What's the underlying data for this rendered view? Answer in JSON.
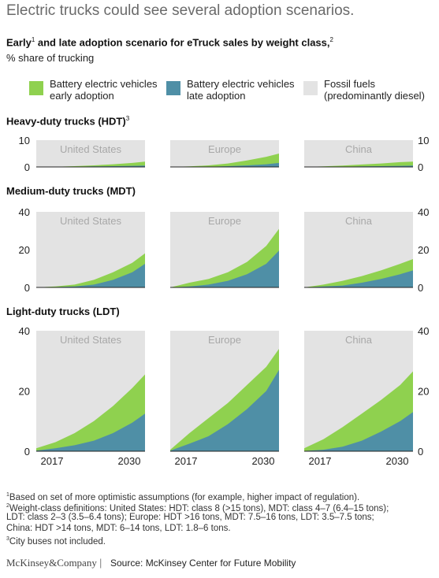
{
  "header": {
    "title": "Electric trucks could see several adoption scenarios.",
    "subtitle": "Early",
    "subtitle_sup1": "1",
    "subtitle_rest": " and late adoption scenario for eTruck sales by weight class,",
    "subtitle_sup2": "2",
    "unit": "% share of trucking"
  },
  "legend": [
    {
      "line1": "Battery electric vehicles",
      "line2": "early adoption",
      "color": "#8fd14f"
    },
    {
      "line1": "Battery electric vehicles",
      "line2": "late adoption",
      "color": "#4f8fa6"
    },
    {
      "line1": "Fossil fuels",
      "line2": "(predominantly diesel)",
      "color": "#e3e3e3"
    }
  ],
  "colors": {
    "early": "#8fd14f",
    "late": "#4f8fa6",
    "fossil": "#e3e3e3",
    "region_label": "#a8a8a8"
  },
  "sections": [
    {
      "title": "Heavy-duty trucks (HDT)",
      "sup": "3"
    },
    {
      "title": "Medium-duty trucks (MDT)",
      "sup": ""
    },
    {
      "title": "Light-duty trucks (LDT)",
      "sup": ""
    }
  ],
  "chart_data": [
    {
      "type": "area",
      "group": "Heavy-duty trucks (HDT)",
      "region": "United States",
      "ylim": [
        0,
        10
      ],
      "yticks": [
        0,
        10
      ],
      "x": [
        2015,
        2018,
        2021,
        2024,
        2027,
        2030,
        2032
      ],
      "series": [
        {
          "name": "Battery electric vehicles early adoption",
          "values": [
            0,
            0.1,
            0.3,
            0.6,
            1.0,
            1.5,
            2.0
          ]
        },
        {
          "name": "Battery electric vehicles late adoption",
          "values": [
            0,
            0,
            0.1,
            0.2,
            0.3,
            0.4,
            0.5
          ]
        }
      ]
    },
    {
      "type": "area",
      "group": "Heavy-duty trucks (HDT)",
      "region": "Europe",
      "ylim": [
        0,
        10
      ],
      "yticks": [
        0,
        10
      ],
      "x": [
        2015,
        2018,
        2021,
        2024,
        2027,
        2030,
        2032
      ],
      "series": [
        {
          "name": "Battery electric vehicles early adoption",
          "values": [
            0,
            0.2,
            0.6,
            1.3,
            2.4,
            3.8,
            5.0
          ]
        },
        {
          "name": "Battery electric vehicles late adoption",
          "values": [
            0,
            0,
            0.1,
            0.3,
            0.6,
            1.0,
            1.5
          ]
        }
      ]
    },
    {
      "type": "area",
      "group": "Heavy-duty trucks (HDT)",
      "region": "China",
      "ylim": [
        0,
        10
      ],
      "yticks": [
        0,
        10
      ],
      "x": [
        2015,
        2018,
        2021,
        2024,
        2027,
        2030,
        2032
      ],
      "series": [
        {
          "name": "Battery electric vehicles early adoption",
          "values": [
            0,
            0.2,
            0.5,
            0.9,
            1.3,
            1.8,
            2.0
          ]
        },
        {
          "name": "Battery electric vehicles late adoption",
          "values": [
            0,
            0,
            0.1,
            0.2,
            0.3,
            0.4,
            0.5
          ]
        }
      ]
    },
    {
      "type": "area",
      "group": "Medium-duty trucks (MDT)",
      "region": "United States",
      "ylim": [
        0,
        40
      ],
      "yticks": [
        0,
        20,
        40
      ],
      "x": [
        2015,
        2018,
        2021,
        2024,
        2027,
        2030,
        2032
      ],
      "series": [
        {
          "name": "Battery electric vehicles early adoption",
          "values": [
            0,
            0.5,
            1.5,
            4.0,
            8.0,
            13.0,
            18.0
          ]
        },
        {
          "name": "Battery electric vehicles late adoption",
          "values": [
            0,
            0.2,
            0.5,
            1.5,
            4.0,
            8.0,
            12.5
          ]
        }
      ]
    },
    {
      "type": "area",
      "group": "Medium-duty trucks (MDT)",
      "region": "Europe",
      "ylim": [
        0,
        40
      ],
      "yticks": [
        0,
        20,
        40
      ],
      "x": [
        2015,
        2018,
        2021,
        2024,
        2027,
        2030,
        2032
      ],
      "series": [
        {
          "name": "Battery electric vehicles early adoption",
          "values": [
            0,
            2.5,
            4.5,
            8.0,
            13.5,
            22.0,
            31.0
          ]
        },
        {
          "name": "Battery electric vehicles late adoption",
          "values": [
            0,
            0.5,
            1.5,
            3.5,
            7.0,
            12.5,
            19.5
          ]
        }
      ]
    },
    {
      "type": "area",
      "group": "Medium-duty trucks (MDT)",
      "region": "China",
      "ylim": [
        0,
        40
      ],
      "yticks": [
        0,
        20,
        40
      ],
      "x": [
        2015,
        2018,
        2021,
        2024,
        2027,
        2030,
        2032
      ],
      "series": [
        {
          "name": "Battery electric vehicles early adoption",
          "values": [
            0,
            1.5,
            3.5,
            6.0,
            9.0,
            12.5,
            15.0
          ]
        },
        {
          "name": "Battery electric vehicles late adoption",
          "values": [
            0,
            0.5,
            1.0,
            2.5,
            4.5,
            7.0,
            9.0
          ]
        }
      ]
    },
    {
      "type": "area",
      "group": "Light-duty trucks (LDT)",
      "region": "United States",
      "ylim": [
        0,
        40
      ],
      "yticks": [
        0,
        20,
        40
      ],
      "x": [
        2015,
        2018,
        2021,
        2024,
        2027,
        2030,
        2032
      ],
      "series": [
        {
          "name": "Battery electric vehicles early adoption",
          "values": [
            1.0,
            3.0,
            6.0,
            10.0,
            15.0,
            21.0,
            25.5
          ]
        },
        {
          "name": "Battery electric vehicles late adoption",
          "values": [
            0.2,
            1.0,
            2.0,
            3.5,
            6.0,
            9.5,
            12.5
          ]
        }
      ]
    },
    {
      "type": "area",
      "group": "Light-duty trucks (LDT)",
      "region": "Europe",
      "ylim": [
        0,
        40
      ],
      "yticks": [
        0,
        20,
        40
      ],
      "x": [
        2015,
        2018,
        2021,
        2024,
        2027,
        2030,
        2032
      ],
      "series": [
        {
          "name": "Battery electric vehicles early adoption",
          "values": [
            0.5,
            6.0,
            11.0,
            16.0,
            22.0,
            28.0,
            34.0
          ]
        },
        {
          "name": "Battery electric vehicles late adoption",
          "values": [
            0.2,
            2.5,
            5.0,
            9.0,
            14.0,
            20.0,
            27.0
          ]
        }
      ]
    },
    {
      "type": "area",
      "group": "Light-duty trucks (LDT)",
      "region": "China",
      "ylim": [
        0,
        40
      ],
      "yticks": [
        0,
        20,
        40
      ],
      "x": [
        2015,
        2018,
        2021,
        2024,
        2027,
        2030,
        2032
      ],
      "series": [
        {
          "name": "Battery electric vehicles early adoption",
          "values": [
            1.0,
            4.0,
            8.0,
            12.5,
            17.0,
            22.0,
            26.5
          ]
        },
        {
          "name": "Battery electric vehicles late adoption",
          "values": [
            0.1,
            0.5,
            1.5,
            3.5,
            6.5,
            10.0,
            13.0
          ]
        }
      ]
    }
  ],
  "x_tick_labels": [
    "2017",
    "2030"
  ],
  "footnotes": [
    {
      "sup": "1",
      "text": "Based on set of more optimistic assumptions (for example, higher impact of regulation)."
    },
    {
      "sup": "2",
      "text": "Weight-class definitions: United States: HDT: class 8 (>15 tons), MDT: class 4–7 (6.4–15 tons);"
    },
    {
      "sup": "",
      "text": " LDT: class 2–3 (3.5–6.4 tons); Europe: HDT >16 tons, MDT: 7.5–16 tons, LDT: 3.5–7.5 tons;"
    },
    {
      "sup": "",
      "text": " China: HDT >14 tons, MDT: 6–14 tons, LDT: 1.8–6 tons."
    },
    {
      "sup": "3",
      "text": "City buses not included."
    }
  ],
  "footer": {
    "brand": "McKinsey&Company",
    "separator": "|",
    "source": "Source: McKinsey Center for Future Mobility"
  }
}
